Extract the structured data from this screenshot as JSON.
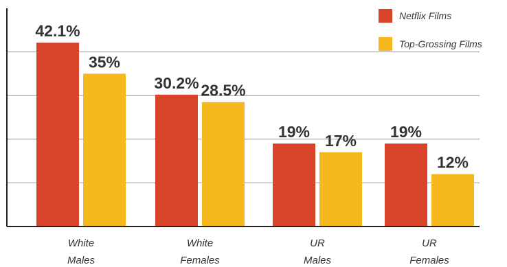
{
  "chart_data": {
    "type": "bar",
    "categories": [
      [
        "White",
        "Males"
      ],
      [
        "White",
        "Females"
      ],
      [
        "UR",
        "Males"
      ],
      [
        "UR",
        "Females"
      ]
    ],
    "series": [
      {
        "name": "Netflix Films",
        "values": [
          42.1,
          30.2,
          19,
          19
        ],
        "labels": [
          "42.1%",
          "30.2%",
          "19%",
          "19%"
        ],
        "color": "#d9432a"
      },
      {
        "name": "Top-Grossing Films",
        "values": [
          35,
          28.5,
          17,
          12
        ],
        "labels": [
          "35%",
          "28.5%",
          "17%",
          "12%"
        ],
        "color": "#f5b81d"
      }
    ],
    "ylim": [
      0,
      50
    ],
    "grid": true,
    "legend_position": "top-right"
  }
}
